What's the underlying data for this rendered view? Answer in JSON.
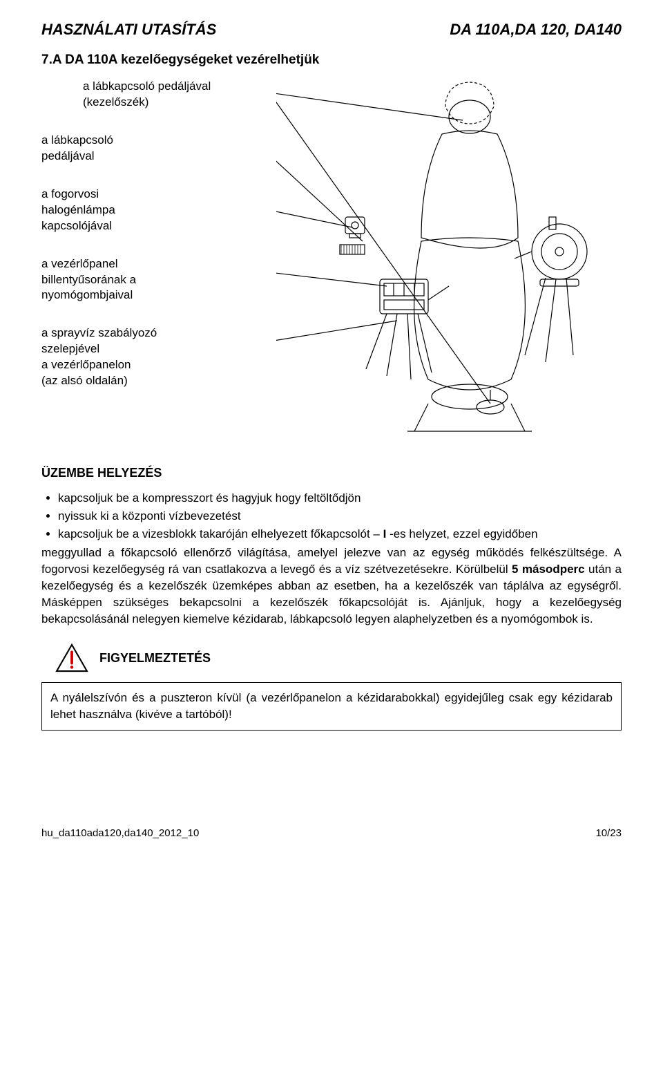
{
  "header": {
    "left": "HASZNÁLATI UTASÍTÁS",
    "right": "DA 110A,DA 120, DA140"
  },
  "section_title": "7.A DA 110A kezelőegységeket vezérelhetjük",
  "labels": [
    "a lábkapcsoló pedáljával (kezelőszék)",
    "a lábkapcsoló\npedáljával",
    "a fogorvosi\nhalogénlámpa\nkapcsolójával",
    "a vezérlőpanel\nbillentyűsorának a\nnyomógombjaival",
    "a sprayvíz szabályozó\nszelepjével\na vezérlőpanelon\n(az alsó oldalán)"
  ],
  "subsection_title": "ÜZEMBE HELYEZÉS",
  "bullets": [
    "kapcsoljuk be a kompresszort és hagyjuk hogy feltöltődjön",
    "nyissuk ki a központi vízbevezetést",
    "kapcsoljuk be a vizesblokk takaróján elhelyezett főkapcsolót – I -es helyzet, ezzel egyidőben"
  ],
  "paragraph": "meggyullad a főkapcsoló ellenőrző világítása, amelyel jelezve van az egység működés felkészültsége. A fogorvosi kezelőegység rá van csatlakozva a levegő és a víz szétvezetésekre. Körülbelül 5 másodperc után a kezelőegység és a kezelőszék üzemképes abban az esetben, ha a kezelőszék van táplálva az egységről. Másképpen szükséges bekapcsolni a kezelőszék főkapcsolóját is. Ajánljuk, hogy a kezelőegység bekapcsolásánál nelegyen kiemelve kézidarab, lábkapcsoló legyen alaphelyzetben és a nyomógombok is.",
  "warning_label": "FIGYELMEZTETÉS",
  "warning_text": "A nyálelszívón és a puszteron kívül (a vezérlőpanelon a kézidarabokkal) egyidejűleg csak egy kézidarab lehet használva (kivéve a tartóból)!",
  "footer": {
    "left": "hu_da110ada120,da140_2012_10",
    "right": "10/23"
  },
  "colors": {
    "text": "#000000",
    "background": "#ffffff",
    "stroke": "#000000",
    "warn_red": "#cc0000"
  },
  "diagram": {
    "stroke": "#000000",
    "fill": "#ffffff",
    "stroke_width": 1.2
  }
}
